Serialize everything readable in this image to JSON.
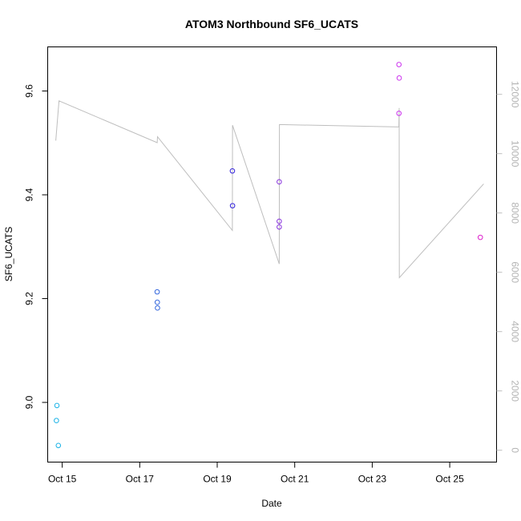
{
  "chart_data": {
    "type": "scatter",
    "title": "ATOM3 Northbound SF6_UCATS",
    "xlabel": "Date",
    "ylabel": "SF6_UCATS",
    "x_ticks": [
      "Oct 15",
      "Oct 17",
      "Oct 19",
      "Oct 21",
      "Oct 23",
      "Oct 25"
    ],
    "xlim": [
      "2017-10-14T15:00",
      "2017-10-26T05:00"
    ],
    "y_ticks": [
      "9.0",
      "9.2",
      "9.4",
      "9.6"
    ],
    "ylim": [
      8.885,
      9.685
    ],
    "y2_ticks": [
      "0",
      "2000",
      "4000",
      "6000",
      "8000",
      "10000",
      "12000"
    ],
    "y2lim": [
      -400,
      13600
    ],
    "y2_color": "#bebebe",
    "points": [
      {
        "x": "2017-10-14T20:24",
        "y": 8.965,
        "color": "#19b2e6"
      },
      {
        "x": "2017-10-14T20:43",
        "y": 8.994,
        "color": "#19b2e6"
      },
      {
        "x": "2017-10-14T21:36",
        "y": 8.917,
        "color": "#19b2e6"
      },
      {
        "x": "2017-10-17T10:48",
        "y": 9.213,
        "color": "#3366dd"
      },
      {
        "x": "2017-10-17T10:53",
        "y": 9.193,
        "color": "#3366dd"
      },
      {
        "x": "2017-10-17T11:00",
        "y": 9.182,
        "color": "#3366dd"
      },
      {
        "x": "2017-10-19T09:24",
        "y": 9.446,
        "color": "#3322dd"
      },
      {
        "x": "2017-10-19T09:29",
        "y": 9.379,
        "color": "#3322dd"
      },
      {
        "x": "2017-10-20T14:24",
        "y": 9.425,
        "color": "#8833dd"
      },
      {
        "x": "2017-10-20T14:24",
        "y": 9.349,
        "color": "#8833dd"
      },
      {
        "x": "2017-10-20T14:24",
        "y": 9.338,
        "color": "#8833dd"
      },
      {
        "x": "2017-10-23T16:33",
        "y": 9.651,
        "color": "#cc33ee"
      },
      {
        "x": "2017-10-23T16:43",
        "y": 9.625,
        "color": "#cc33ee"
      },
      {
        "x": "2017-10-23T16:33",
        "y": 9.557,
        "color": "#cc33ee"
      },
      {
        "x": "2017-10-25T18:57",
        "y": 9.318,
        "color": "#dd22cc"
      }
    ],
    "altitude_line": [
      {
        "x": "2017-10-14T20:00",
        "y": 10440
      },
      {
        "x": "2017-10-14T22:00",
        "y": 11780
      },
      {
        "x": "2017-10-17T10:48",
        "y": 10370
      },
      {
        "x": "2017-10-17T11:00",
        "y": 10570
      },
      {
        "x": "2017-10-19T09:24",
        "y": 7410
      },
      {
        "x": "2017-10-19T09:30",
        "y": 10960
      },
      {
        "x": "2017-10-20T14:24",
        "y": 6280
      },
      {
        "x": "2017-10-20T14:30",
        "y": 10980
      },
      {
        "x": "2017-10-23T16:30",
        "y": 10900
      },
      {
        "x": "2017-10-23T16:42",
        "y": 11540
      },
      {
        "x": "2017-10-23T16:48",
        "y": 5820
      },
      {
        "x": "2017-10-25T21:00",
        "y": 8980
      }
    ],
    "grid": false
  }
}
